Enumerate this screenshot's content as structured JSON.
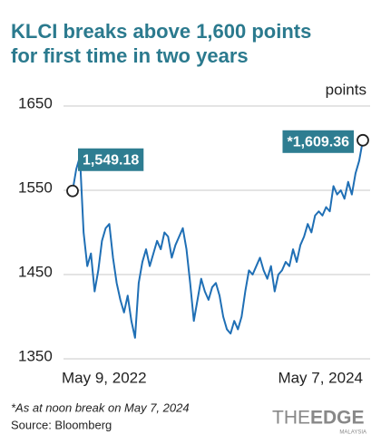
{
  "chart_data": {
    "type": "line",
    "title": [
      "KLCI breaks above 1,600 points",
      "for first time in two years"
    ],
    "y_label": "points",
    "categories": [
      "May 9, 2022",
      null,
      null,
      null,
      null,
      null,
      null,
      null,
      null,
      null,
      null,
      null,
      null,
      null,
      null,
      null,
      null,
      null,
      null,
      null,
      null,
      null,
      null,
      null,
      null,
      null,
      null,
      null,
      null,
      null,
      null,
      null,
      null,
      null,
      null,
      null,
      null,
      null,
      null,
      null,
      null,
      null,
      null,
      null,
      null,
      null,
      null,
      null,
      null,
      null,
      null,
      null,
      null,
      null,
      null,
      null,
      null,
      null,
      null,
      null,
      null,
      null,
      null,
      null,
      null,
      null,
      null,
      null,
      null,
      null,
      null,
      null,
      null,
      null,
      null,
      null,
      null,
      null,
      null,
      "May 7, 2024"
    ],
    "series": [
      {
        "name": "KLCI",
        "color": "#1f6fb5",
        "values": [
          1549.18,
          1575,
          1590,
          1500,
          1460,
          1475,
          1430,
          1455,
          1490,
          1505,
          1510,
          1470,
          1440,
          1420,
          1405,
          1425,
          1395,
          1375,
          1440,
          1465,
          1480,
          1460,
          1475,
          1490,
          1480,
          1500,
          1495,
          1470,
          1485,
          1495,
          1505,
          1480,
          1440,
          1395,
          1420,
          1445,
          1430,
          1420,
          1435,
          1440,
          1425,
          1400,
          1385,
          1380,
          1395,
          1385,
          1400,
          1430,
          1455,
          1450,
          1460,
          1470,
          1455,
          1445,
          1460,
          1430,
          1450,
          1455,
          1465,
          1460,
          1480,
          1465,
          1485,
          1495,
          1510,
          1500,
          1520,
          1525,
          1520,
          1530,
          1525,
          1555,
          1545,
          1550,
          1540,
          1560,
          1545,
          1570,
          1585,
          1609.36
        ],
        "value_labels": [
          "1,549.18",
          null,
          null,
          null,
          null,
          null,
          null,
          null,
          null,
          null,
          null,
          null,
          null,
          null,
          null,
          null,
          null,
          null,
          null,
          null,
          null,
          null,
          null,
          null,
          null,
          null,
          null,
          null,
          null,
          null,
          null,
          null,
          null,
          null,
          null,
          null,
          null,
          null,
          null,
          null,
          null,
          null,
          null,
          null,
          null,
          null,
          null,
          null,
          null,
          null,
          null,
          null,
          null,
          null,
          null,
          null,
          null,
          null,
          null,
          null,
          null,
          null,
          null,
          null,
          null,
          null,
          null,
          null,
          null,
          null,
          null,
          null,
          null,
          null,
          null,
          null,
          null,
          null,
          null,
          "*1,609.36"
        ]
      }
    ],
    "label_color": "#2e7d91",
    "ylim": [
      1350,
      1650
    ],
    "yticks": [
      1350,
      1450,
      1550,
      1650
    ],
    "grid": true,
    "footnote": "*As at noon break on May 7, 2024",
    "source": "Source: Bloomberg",
    "logo": {
      "the": "THE",
      "edge": "EDGE",
      "sub": "MALAYSIA"
    }
  }
}
